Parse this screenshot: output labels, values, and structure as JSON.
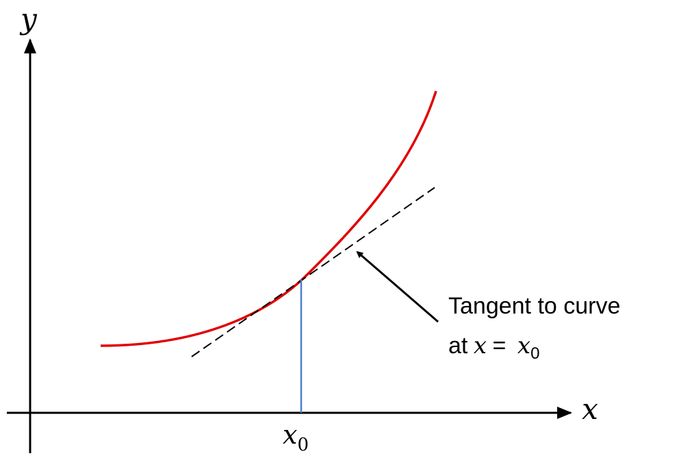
{
  "axes": {
    "x_label": "x",
    "y_label": "y"
  },
  "point_label": {
    "base": "x",
    "subscript": "0"
  },
  "annotation": {
    "line1": "Tangent to curve",
    "line2": {
      "prefix": "at",
      "variable": "x",
      "relation": "=",
      "value": {
        "base": "x",
        "subscript": "0"
      }
    }
  }
}
